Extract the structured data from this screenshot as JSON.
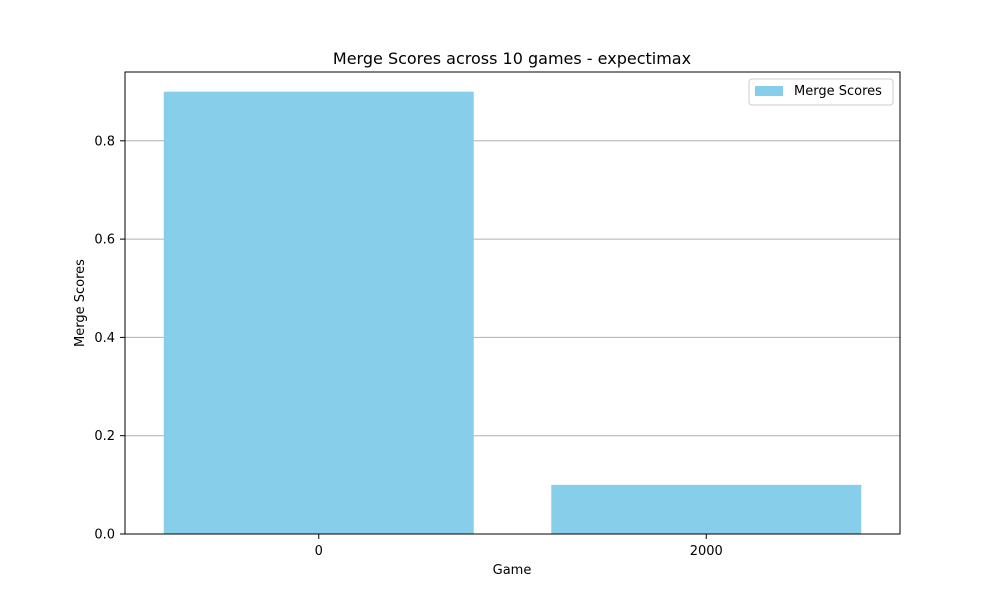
{
  "chart_data": {
    "type": "bar",
    "title": "Merge Scores across 10 games - expectimax",
    "xlabel": "Game",
    "ylabel": "Merge Scores",
    "categories": [
      "0",
      "2000"
    ],
    "series": [
      {
        "name": "Merge Scores",
        "values": [
          0.9,
          0.1
        ]
      }
    ],
    "ylim": [
      0,
      0.94
    ],
    "yticks": [
      0.0,
      0.2,
      0.4,
      0.6,
      0.8
    ],
    "ytick_labels": [
      "0.0",
      "0.2",
      "0.4",
      "0.6",
      "0.8"
    ],
    "grid": "y",
    "legend_position": "top-right",
    "bar_color": "#87CEEB",
    "grid_color": "#b0b0b0"
  }
}
